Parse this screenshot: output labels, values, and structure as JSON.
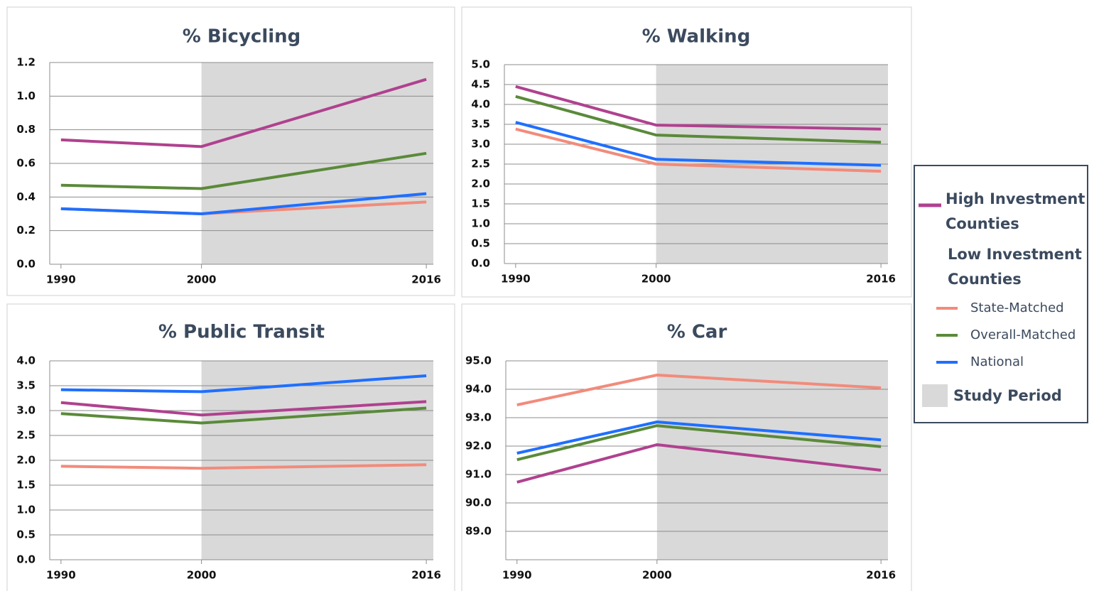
{
  "chart_data": [
    {
      "type": "line",
      "title": "% Bicycling",
      "x": [
        1990,
        2000,
        2016
      ],
      "xlim": [
        1989.2,
        2016.5
      ],
      "xticks": [
        1990,
        2000,
        2016
      ],
      "ylim": [
        0,
        1.2
      ],
      "yticks": [
        {
          "value": 0,
          "label": "0.0"
        },
        0.2,
        0.4,
        0.6,
        0.8,
        {
          "value": 1,
          "label": "1.0"
        },
        1.2
      ],
      "grid": true,
      "shade_from": 2000,
      "series": [
        {
          "name": "High Investment Counties",
          "color": "#b0418f",
          "values": [
            0.74,
            0.7,
            1.1
          ]
        },
        {
          "name": "State-Matched",
          "color": "#f28b7b",
          "values": [
            0.33,
            0.3,
            0.37
          ]
        },
        {
          "name": "Overall-Matched",
          "color": "#5a8a3a",
          "values": [
            0.47,
            0.45,
            0.66
          ]
        },
        {
          "name": "National",
          "color": "#1f6fff",
          "values": [
            0.33,
            0.3,
            0.42
          ]
        }
      ]
    },
    {
      "type": "line",
      "title": "% Walking",
      "x": [
        1990,
        2000,
        2016
      ],
      "xlim": [
        1989.2,
        2016.5
      ],
      "xticks": [
        1990,
        2000,
        2016
      ],
      "ylim": [
        0,
        5
      ],
      "yticks": [
        {
          "value": 0,
          "label": "0.0"
        },
        0.5,
        {
          "value": 1,
          "label": "1.0"
        },
        1.5,
        {
          "value": 2,
          "label": "2.0"
        },
        2.5,
        {
          "value": 3,
          "label": "3.0"
        },
        3.5,
        {
          "value": 4,
          "label": "4.0"
        },
        4.5,
        {
          "value": 5,
          "label": "5.0"
        }
      ],
      "grid": true,
      "shade_from": 2000,
      "series": [
        {
          "name": "High Investment Counties",
          "color": "#b0418f",
          "values": [
            4.45,
            3.48,
            3.38
          ]
        },
        {
          "name": "State-Matched",
          "color": "#f28b7b",
          "values": [
            3.38,
            2.5,
            2.32
          ]
        },
        {
          "name": "Overall-Matched",
          "color": "#5a8a3a",
          "values": [
            4.2,
            3.23,
            3.05
          ]
        },
        {
          "name": "National",
          "color": "#1f6fff",
          "values": [
            3.55,
            2.62,
            2.47
          ]
        }
      ]
    },
    {
      "type": "line",
      "title": "% Public Transit",
      "x": [
        1990,
        2000,
        2016
      ],
      "xlim": [
        1989.2,
        2016.5
      ],
      "xticks": [
        1990,
        2000,
        2016
      ],
      "ylim": [
        0,
        4
      ],
      "yticks": [
        {
          "value": 0,
          "label": "0.0"
        },
        0.5,
        {
          "value": 1,
          "label": "1.0"
        },
        1.5,
        {
          "value": 2,
          "label": "2.0"
        },
        2.5,
        {
          "value": 3,
          "label": "3.0"
        },
        3.5,
        {
          "value": 4,
          "label": "4.0"
        }
      ],
      "grid": true,
      "shade_from": 2000,
      "series": [
        {
          "name": "High Investment Counties",
          "color": "#b0418f",
          "values": [
            3.16,
            2.91,
            3.18
          ]
        },
        {
          "name": "State-Matched",
          "color": "#f28b7b",
          "values": [
            1.88,
            1.84,
            1.91
          ]
        },
        {
          "name": "Overall-Matched",
          "color": "#5a8a3a",
          "values": [
            2.94,
            2.75,
            3.05
          ]
        },
        {
          "name": "National",
          "color": "#1f6fff",
          "values": [
            3.42,
            3.38,
            3.7
          ]
        }
      ]
    },
    {
      "type": "line",
      "title": "% Car",
      "x": [
        1990,
        2000,
        2016
      ],
      "xlim": [
        1989.2,
        2016.5
      ],
      "xticks": [
        1990,
        2000,
        2016
      ],
      "ylim": [
        88,
        95
      ],
      "yticks": [
        {
          "value": 89,
          "label": "89.0"
        },
        {
          "value": 90,
          "label": "90.0"
        },
        {
          "value": 91,
          "label": "91.0"
        },
        {
          "value": 92,
          "label": "92.0"
        },
        {
          "value": 93,
          "label": "93.0"
        },
        {
          "value": 94,
          "label": "94.0"
        },
        {
          "value": 95,
          "label": "95.0"
        }
      ],
      "grid": true,
      "shade_from": 2000,
      "series": [
        {
          "name": "High Investment Counties",
          "color": "#b0418f",
          "values": [
            90.73,
            92.05,
            91.15
          ]
        },
        {
          "name": "State-Matched",
          "color": "#f28b7b",
          "values": [
            93.45,
            94.5,
            94.05
          ]
        },
        {
          "name": "Overall-Matched",
          "color": "#5a8a3a",
          "values": [
            91.52,
            92.72,
            91.98
          ]
        },
        {
          "name": "National",
          "color": "#1f6fff",
          "values": [
            91.75,
            92.85,
            92.22
          ]
        }
      ]
    }
  ],
  "legend": {
    "group": "Low Investment Counties",
    "shade": "Study Period"
  }
}
